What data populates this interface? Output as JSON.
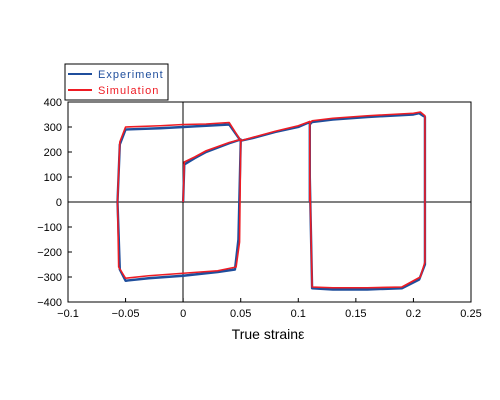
{
  "chart_data": {
    "type": "line",
    "xlabel": "True strainε",
    "ylabel": "",
    "xlim": [
      -0.1,
      0.25
    ],
    "ylim": [
      -400,
      400
    ],
    "x_ticks": [
      -0.1,
      -0.05,
      0,
      0.05,
      0.1,
      0.15,
      0.2,
      0.25
    ],
    "y_ticks": [
      -400,
      -300,
      -200,
      -100,
      0,
      100,
      200,
      300,
      400
    ],
    "x_tick_labels": [
      "−0.1",
      "−0.05",
      "0",
      "0.05",
      "0.1",
      "0.15",
      "0.2",
      "0.25"
    ],
    "y_tick_labels": [
      "−400",
      "−300",
      "−200",
      "−100",
      "0",
      "100",
      "200",
      "300",
      "400"
    ],
    "grid": false,
    "legend_position": "top-left",
    "series": [
      {
        "name": "Experiment",
        "color": "#1f4e9c",
        "x": [
          0,
          0.001,
          0.01,
          0.02,
          0.04,
          0.05,
          0.05,
          0.048,
          0.045,
          0.03,
          0.0,
          -0.03,
          -0.05,
          -0.055,
          -0.057,
          -0.055,
          -0.05,
          -0.02,
          0.0,
          0.02,
          0.04,
          0.05,
          0.06,
          0.08,
          0.1,
          0.11,
          0.11,
          0.112,
          0.13,
          0.16,
          0.19,
          0.205,
          0.21,
          0.21,
          0.21,
          0.205,
          0.2,
          0.16,
          0.13,
          0.112,
          0.11,
          0.11
        ],
        "y": [
          0,
          150,
          175,
          200,
          235,
          250,
          240,
          -150,
          -270,
          -280,
          -295,
          -305,
          -315,
          -270,
          0,
          230,
          290,
          295,
          300,
          305,
          310,
          245,
          255,
          280,
          300,
          320,
          100,
          -345,
          -350,
          -350,
          -345,
          -310,
          -250,
          0,
          340,
          355,
          350,
          340,
          330,
          320,
          310,
          0
        ]
      },
      {
        "name": "Simulation",
        "color": "#ee1c24",
        "x": [
          0,
          0.001,
          0.01,
          0.02,
          0.04,
          0.05,
          0.05,
          0.049,
          0.046,
          0.03,
          0.0,
          -0.03,
          -0.05,
          -0.056,
          -0.057,
          -0.055,
          -0.05,
          -0.02,
          0.0,
          0.02,
          0.04,
          0.05,
          0.06,
          0.08,
          0.1,
          0.11,
          0.11,
          0.112,
          0.13,
          0.16,
          0.19,
          0.206,
          0.21,
          0.21,
          0.21,
          0.206,
          0.2,
          0.16,
          0.13,
          0.112,
          0.11,
          0.11
        ],
        "y": [
          0,
          160,
          180,
          205,
          238,
          250,
          240,
          -160,
          -260,
          -275,
          -285,
          -295,
          -305,
          -260,
          0,
          240,
          300,
          305,
          310,
          312,
          318,
          245,
          258,
          283,
          305,
          322,
          100,
          -340,
          -343,
          -343,
          -340,
          -300,
          -240,
          0,
          345,
          360,
          355,
          345,
          335,
          325,
          315,
          0
        ]
      }
    ]
  }
}
